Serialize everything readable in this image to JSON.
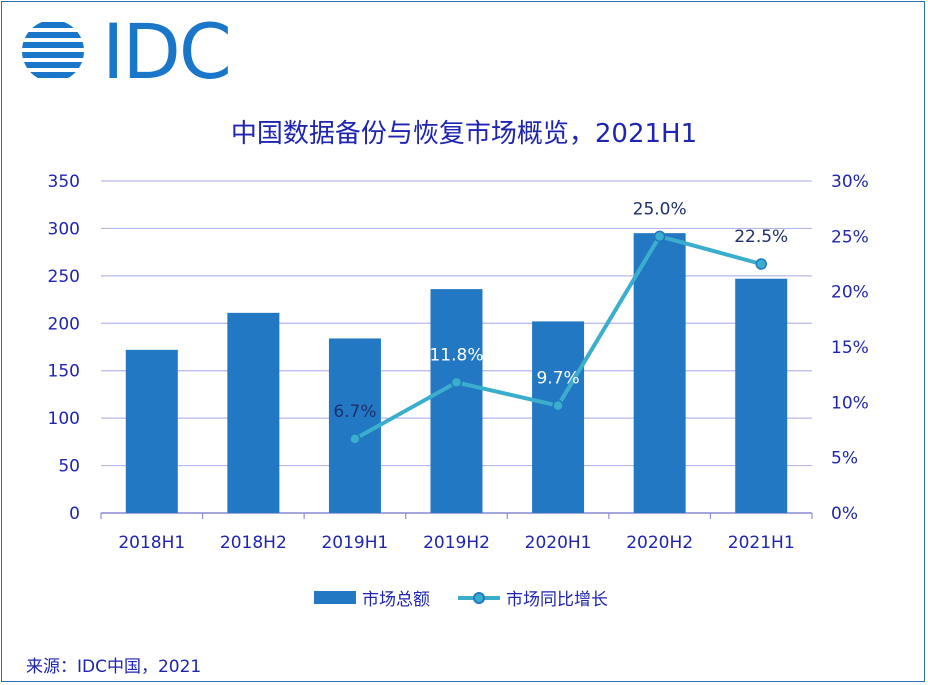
{
  "logo": {
    "text": "IDC"
  },
  "source": "来源：IDC中国，2021",
  "colors": {
    "bar": "#2378c3",
    "line": "#3aaecc",
    "text": "#1f25b0",
    "grid": "#b7b7ee",
    "point_label": "#1f2f6e",
    "point_label_light": "#ffffff"
  },
  "chart_data": {
    "type": "bar+line",
    "title": "中国数据备份与恢复市场概览，2021H1",
    "categories": [
      "2018H1",
      "2018H2",
      "2019H1",
      "2019H2",
      "2020H1",
      "2020H2",
      "2021H1"
    ],
    "series": [
      {
        "name": "市场总额",
        "type": "bar",
        "axis": "left",
        "values": [
          172,
          211,
          184,
          236,
          202,
          295,
          247
        ]
      },
      {
        "name": "市场同比增长",
        "type": "line",
        "axis": "right",
        "values": [
          null,
          null,
          6.7,
          11.8,
          9.7,
          25.0,
          22.5
        ],
        "labels": [
          null,
          null,
          "6.7%",
          "11.8%",
          "9.7%",
          "25.0%",
          "22.5%"
        ]
      }
    ],
    "ylim_left": [
      0,
      350
    ],
    "yticks_left": [
      "0",
      "50",
      "100",
      "150",
      "200",
      "250",
      "300",
      "350"
    ],
    "ylim_right": [
      0,
      30
    ],
    "yticks_right": [
      "0%",
      "5%",
      "10%",
      "15%",
      "20%",
      "25%",
      "30%"
    ],
    "grid": true,
    "legend_position": "bottom"
  }
}
